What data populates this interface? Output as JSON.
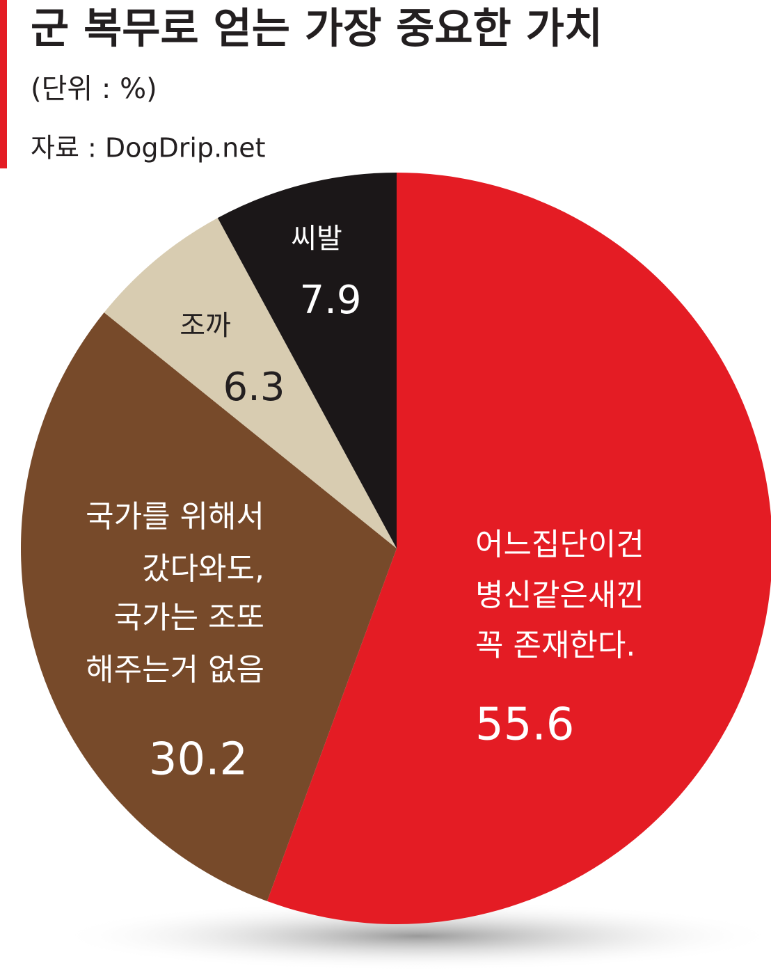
{
  "chart_data": {
    "type": "pie",
    "title": "군 복무로 얻는 가장 중요한 가치",
    "subtitle": "(단위 : %)",
    "source": "자료 : DogDrip.net",
    "categories": [
      [
        "어느집단이건",
        "병신같은새낀",
        "꼭 존재한다."
      ],
      [
        "국가를 위해서",
        "갔다와도,",
        "국가는 조또",
        "해주는거 없음"
      ],
      [
        "조까"
      ],
      [
        "씨발"
      ]
    ],
    "values": [
      55.6,
      30.2,
      6.3,
      7.9
    ],
    "colors": [
      "#e41c24",
      "#774a2a",
      "#d8ccb1",
      "#1b1718"
    ],
    "label_colors": [
      "#ffffff",
      "#ffffff",
      "#231f20",
      "#ffffff"
    ]
  }
}
